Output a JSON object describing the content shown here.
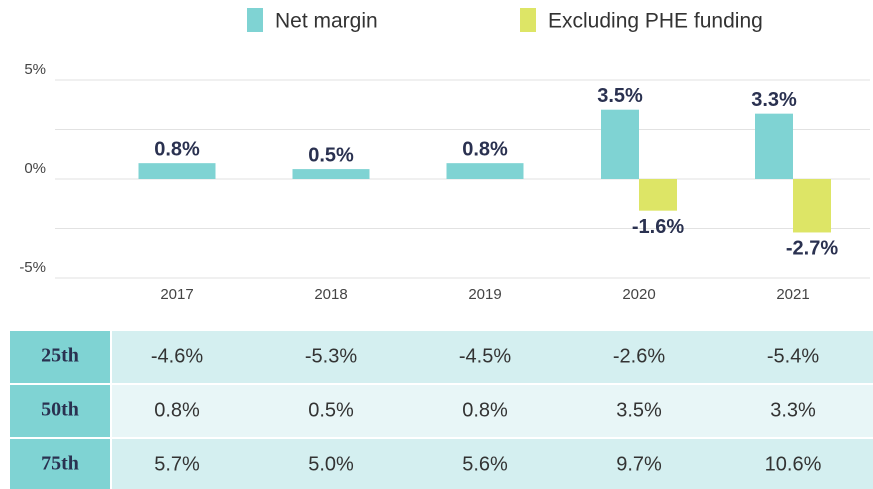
{
  "chart_data": {
    "type": "bar",
    "categories": [
      "2017",
      "2018",
      "2019",
      "2020",
      "2021"
    ],
    "series": [
      {
        "name": "Net margin",
        "color": "#7fd3d3",
        "values": [
          0.8,
          0.5,
          0.8,
          3.5,
          3.3
        ],
        "value_labels": [
          "0.8%",
          "0.5%",
          "0.8%",
          "3.5%",
          "3.3%"
        ]
      },
      {
        "name": "Excluding PHE funding",
        "color": "#dde566",
        "values": [
          null,
          null,
          null,
          -1.6,
          -2.7
        ],
        "value_labels": [
          null,
          null,
          null,
          "-1.6%",
          "-2.7%"
        ]
      }
    ],
    "ylim": [
      -5,
      5
    ],
    "yticks": [
      {
        "value": 5,
        "label": "5%"
      },
      {
        "value": 0,
        "label": "0%"
      },
      {
        "value": -5,
        "label": "-5%"
      }
    ],
    "minor_yticks": [
      2.5,
      -2.5
    ],
    "grid": true,
    "legend": "top"
  },
  "table": {
    "rows": [
      [
        "25th",
        "-4.6%",
        "-5.3%",
        "-4.5%",
        "-2.6%",
        "-5.4%"
      ],
      [
        "50th",
        "0.8%",
        "0.5%",
        "0.8%",
        "3.5%",
        "3.3%"
      ],
      [
        "75th",
        "5.7%",
        "5.0%",
        "5.6%",
        "9.7%",
        "10.6%"
      ]
    ]
  }
}
